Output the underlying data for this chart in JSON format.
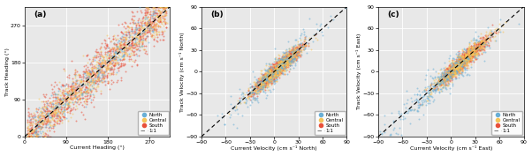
{
  "panels": [
    {
      "label": "(a)",
      "xlabel": "Current Heading (°)",
      "ylabel": "Track Heading (°)",
      "xlim": [
        0,
        315
      ],
      "ylim": [
        0,
        315
      ],
      "xticks": [
        0,
        90,
        180,
        270
      ],
      "yticks": [
        0,
        90,
        180,
        270
      ],
      "line_range": [
        0,
        315
      ]
    },
    {
      "label": "(b)",
      "xlabel": "Current Velocity (cm s⁻¹ North)",
      "ylabel": "Track Velocity (cm s⁻¹ North)",
      "xlim": [
        -90,
        90
      ],
      "ylim": [
        -90,
        90
      ],
      "xticks": [
        -90,
        -60,
        -30,
        0,
        30,
        60,
        90
      ],
      "yticks": [
        -90,
        -60,
        -30,
        0,
        30,
        60,
        90
      ],
      "line_range": [
        -90,
        90
      ]
    },
    {
      "label": "(c)",
      "xlabel": "Current Velocity (cm s⁻¹ East)",
      "ylabel": "Track Velocity (cm s⁻¹ East)",
      "xlim": [
        -90,
        90
      ],
      "ylim": [
        -90,
        90
      ],
      "xticks": [
        -90,
        -60,
        -30,
        0,
        30,
        60,
        90
      ],
      "yticks": [
        -90,
        -60,
        -30,
        0,
        30,
        60,
        90
      ],
      "line_range": [
        -90,
        90
      ]
    }
  ],
  "colors": {
    "North": "#6aafd6",
    "Central": "#f5c55a",
    "South": "#e8503a"
  },
  "marker_size": 2,
  "alpha": 0.55,
  "background_color": "#e8e8e8"
}
